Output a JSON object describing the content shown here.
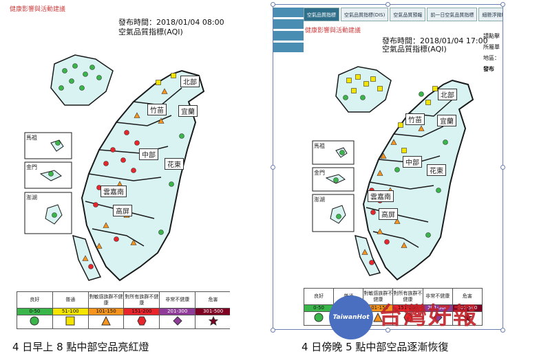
{
  "left": {
    "header": "健康影響與活動建議",
    "publish_time": "發布時間：2018/01/04 08:00",
    "aqi_label": "空氣品質指標(AQI)",
    "regions": [
      "北部",
      "竹苗",
      "宜蘭",
      "中部",
      "花東",
      "雲嘉南",
      "高屏",
      "馬祖",
      "金門",
      "澎湖"
    ],
    "caption": "4 日早上 8 點中部空品亮紅燈"
  },
  "right": {
    "tabs": [
      "空氣品質指標",
      "空氣品質指標(DIS)",
      "空氣品質預報",
      "前一日空氣品質指標",
      "細懸浮微粒"
    ],
    "header": "健康影響與活動建議",
    "publish_time": "發布時間：2018/01/04 17:00",
    "aqi_label": "空氣品質指標(AQI)",
    "side_labels": [
      "請點擊",
      "所屬單",
      "地區：",
      "發布"
    ],
    "regions": [
      "北部",
      "竹苗",
      "宜蘭",
      "中部",
      "花東",
      "雲嘉南",
      "高屏",
      "馬祖",
      "金門",
      "澎湖"
    ],
    "caption": "4 日傍晚 5 點中部空品逐漸恢復"
  },
  "legend": {
    "levels": [
      {
        "label": "良好",
        "range": "0-50",
        "color": "#39b54a",
        "symbol": "circle"
      },
      {
        "label": "普通",
        "range": "51-100",
        "color": "#f5e400",
        "symbol": "square"
      },
      {
        "label": "對敏感族群不健康",
        "range": "101-150",
        "color": "#f7941d",
        "symbol": "triangle"
      },
      {
        "label": "對所有族群不健康",
        "range": "151-200",
        "color": "#e8252b",
        "symbol": "hexagon"
      },
      {
        "label": "非常不健康",
        "range": "201-300",
        "color": "#8e3c97",
        "symbol": "diamond"
      },
      {
        "label": "危害",
        "range": "301-500",
        "color": "#7d0023",
        "symbol": "star"
      }
    ]
  },
  "watermark": {
    "logo_text": "TaiwanHot",
    "brand": "台灣好報"
  }
}
